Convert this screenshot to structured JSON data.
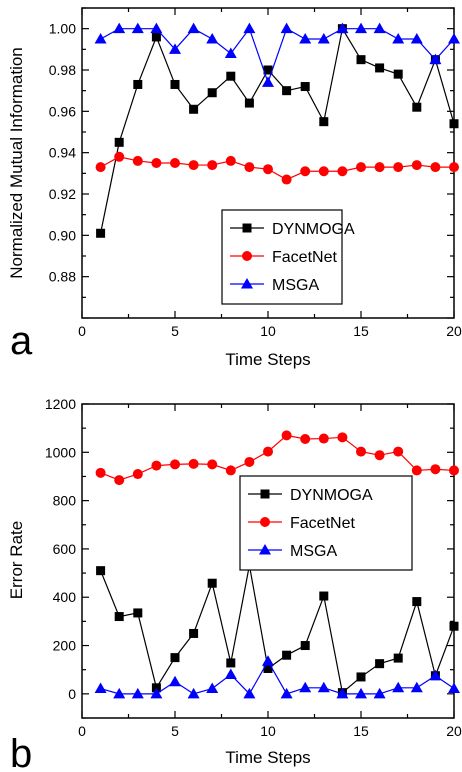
{
  "chart_data": [
    {
      "type": "line",
      "panel_label": "a",
      "xlabel": "Time Steps",
      "ylabel": "Normalized Mutual Information",
      "xlim": [
        0,
        20
      ],
      "ylim": [
        0.86,
        1.01
      ],
      "xticks": [
        0,
        5,
        10,
        15,
        20
      ],
      "yticks": [
        0.88,
        0.9,
        0.92,
        0.94,
        0.96,
        0.98,
        1.0
      ],
      "ytick_labels": [
        "0.88",
        "0.90",
        "0.92",
        "0.94",
        "0.96",
        "0.98",
        "1.00"
      ],
      "grid": false,
      "legend_position": "lower-center",
      "x": [
        1,
        2,
        3,
        4,
        5,
        6,
        7,
        8,
        9,
        10,
        11,
        12,
        13,
        14,
        15,
        16,
        17,
        18,
        19,
        20
      ],
      "series": [
        {
          "name": "DYNMOGA",
          "color": "#000000",
          "marker": "square",
          "values": [
            0.901,
            0.945,
            0.973,
            0.996,
            0.973,
            0.961,
            0.969,
            0.977,
            0.964,
            0.98,
            0.97,
            0.972,
            0.955,
            1.0,
            0.985,
            0.981,
            0.978,
            0.962,
            0.985,
            0.954
          ]
        },
        {
          "name": "FacetNet",
          "color": "#ff0000",
          "marker": "circle",
          "values": [
            0.933,
            0.938,
            0.936,
            0.935,
            0.935,
            0.934,
            0.934,
            0.936,
            0.933,
            0.932,
            0.927,
            0.931,
            0.931,
            0.931,
            0.933,
            0.933,
            0.933,
            0.934,
            0.933,
            0.933
          ]
        },
        {
          "name": "MSGA",
          "color": "#0000ff",
          "marker": "triangle",
          "values": [
            0.995,
            1.0,
            1.0,
            1.0,
            0.99,
            1.0,
            0.995,
            0.988,
            1.0,
            0.974,
            1.0,
            0.995,
            0.995,
            1.0,
            1.0,
            1.0,
            0.995,
            0.995,
            0.985,
            0.995
          ]
        }
      ]
    },
    {
      "type": "line",
      "panel_label": "b",
      "xlabel": "Time Steps",
      "ylabel": "Error Rate",
      "xlim": [
        0,
        20
      ],
      "ylim": [
        -100,
        1200
      ],
      "xticks": [
        0,
        5,
        10,
        15,
        20
      ],
      "yticks": [
        0,
        200,
        400,
        600,
        800,
        1000,
        1200
      ],
      "ytick_labels": [
        "0",
        "200",
        "400",
        "600",
        "800",
        "1000",
        "1200"
      ],
      "grid": false,
      "legend_position": "center-right",
      "x": [
        1,
        2,
        3,
        4,
        5,
        6,
        7,
        8,
        9,
        10,
        11,
        12,
        13,
        14,
        15,
        16,
        17,
        18,
        19,
        20
      ],
      "series": [
        {
          "name": "DYNMOGA",
          "color": "#000000",
          "marker": "square",
          "values": [
            510,
            320,
            335,
            25,
            150,
            250,
            458,
            128,
            532,
            105,
            160,
            200,
            405,
            5,
            70,
            125,
            148,
            382,
            75,
            280
          ]
        },
        {
          "name": "FacetNet",
          "color": "#ff0000",
          "marker": "circle",
          "values": [
            915,
            885,
            910,
            945,
            950,
            952,
            950,
            925,
            960,
            1003,
            1070,
            1055,
            1057,
            1062,
            1003,
            988,
            1003,
            925,
            930,
            925
          ]
        },
        {
          "name": "MSGA",
          "color": "#0000ff",
          "marker": "triangle",
          "values": [
            22,
            0,
            0,
            0,
            50,
            0,
            22,
            80,
            0,
            135,
            0,
            25,
            25,
            0,
            0,
            0,
            25,
            25,
            75,
            22
          ]
        }
      ]
    }
  ]
}
